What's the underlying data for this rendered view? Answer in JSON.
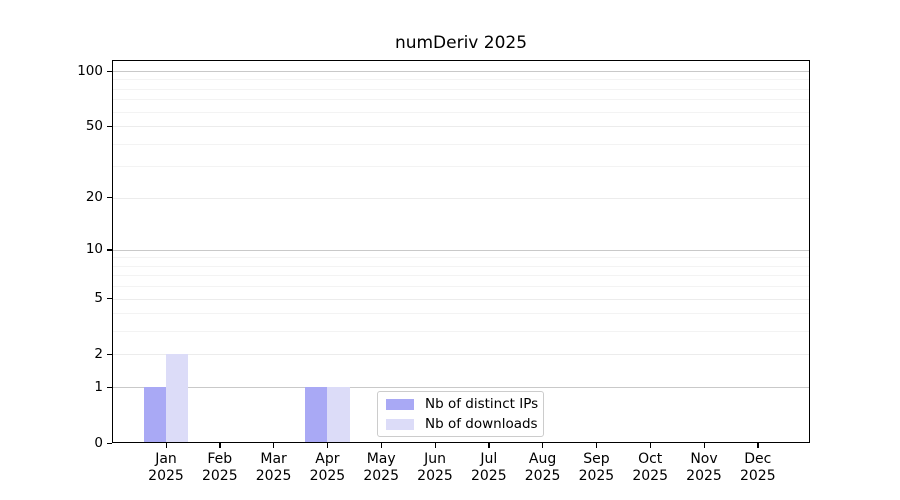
{
  "chart_data": {
    "type": "bar",
    "title": "numDeriv 2025",
    "x": {
      "months": [
        "Jan",
        "Feb",
        "Mar",
        "Apr",
        "May",
        "Jun",
        "Jul",
        "Aug",
        "Sep",
        "Oct",
        "Nov",
        "Dec"
      ],
      "year": "2025"
    },
    "series": [
      {
        "name": "Nb of distinct IPs",
        "color": "#a9a9f5",
        "values": [
          1,
          0,
          0,
          1,
          0,
          0,
          0,
          0,
          0,
          0,
          0,
          0
        ]
      },
      {
        "name": "Nb of downloads",
        "color": "#dcdcf8",
        "values": [
          2,
          0,
          0,
          1,
          0,
          0,
          0,
          0,
          0,
          0,
          0,
          0
        ]
      }
    ],
    "y_axis": {
      "scale": "log1p",
      "ylim": [
        0,
        100
      ],
      "tick_values": [
        0,
        1,
        2,
        5,
        10,
        20,
        50,
        100
      ],
      "decade_gridlines": [
        1,
        10,
        100
      ],
      "mid_gridlines": [
        2,
        5,
        20,
        50
      ],
      "minor_gridlines": [
        3,
        4,
        6,
        7,
        8,
        9,
        30,
        40,
        60,
        70,
        80,
        90
      ]
    },
    "grid": true,
    "legend_position": "bottom-center",
    "colors": {
      "axis": "#000000",
      "grid_decade": "#c9c9c9",
      "grid_mid": "#ececec",
      "grid_minor": "#f3f3f3",
      "legend_border": "#cccccc",
      "background": "#ffffff"
    }
  }
}
